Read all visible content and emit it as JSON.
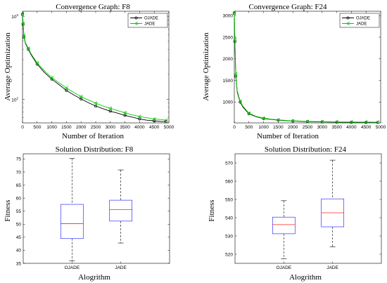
{
  "chart_data": [
    {
      "type": "line",
      "title": "Convergence Graph: F8",
      "xlabel": "Number of Iteration",
      "ylabel": "Average Optimization",
      "yscale": "log",
      "xlim": [
        0,
        5000
      ],
      "ylim": [
        52,
        1150
      ],
      "xticks": [
        "0",
        "500",
        "1000",
        "1500",
        "2000",
        "2500",
        "3000",
        "3500",
        "4000",
        "4500",
        "5000"
      ],
      "yticks": [
        {
          "value": 100,
          "label": "10",
          "sup": "2"
        },
        {
          "value": 1000,
          "label": "10",
          "sup": "3"
        }
      ],
      "legend_position": "top-right",
      "x": [
        0,
        20,
        50,
        100,
        200,
        300,
        500,
        750,
        1000,
        1250,
        1500,
        1750,
        2000,
        2250,
        2500,
        2750,
        3000,
        3250,
        3500,
        3750,
        4000,
        4250,
        4500,
        4750,
        4900
      ],
      "series": [
        {
          "name": "OJADE",
          "color": "#000000",
          "marker": "circle",
          "values": [
            1050,
            800,
            560,
            470,
            400,
            340,
            265,
            210,
            175,
            150,
            128,
            113,
            101,
            91,
            83,
            77,
            72,
            68,
            64,
            61,
            58,
            56,
            55,
            54,
            54
          ]
        },
        {
          "name": "JADE",
          "color": "#00cc00",
          "marker": "triangle-left",
          "values": [
            1080,
            820,
            580,
            480,
            410,
            350,
            275,
            220,
            182,
            158,
            137,
            121,
            108,
            98,
            90,
            83,
            78,
            73,
            69,
            65,
            62,
            60,
            58,
            57,
            56
          ]
        }
      ]
    },
    {
      "type": "line",
      "title": "Convergence Graph: F24",
      "xlabel": "Number of Iteration",
      "ylabel": "Average Optimization",
      "xlim": [
        0,
        5000
      ],
      "ylim": [
        520,
        3100
      ],
      "xticks": [
        "0",
        "500",
        "1000",
        "1500",
        "2000",
        "2500",
        "3000",
        "3500",
        "4000",
        "4500",
        "5000"
      ],
      "yticks": [
        "1000",
        "1500",
        "2000",
        "2500",
        "3000"
      ],
      "legend_position": "top-right",
      "x": [
        0,
        20,
        50,
        100,
        200,
        300,
        500,
        750,
        1000,
        1250,
        1500,
        1750,
        2000,
        2250,
        2500,
        2750,
        3000,
        3250,
        3500,
        3750,
        4000,
        4250,
        4500,
        4750,
        4900
      ],
      "series": [
        {
          "name": "OJADE",
          "color": "#000000",
          "marker": "circle",
          "values": [
            3050,
            2400,
            1600,
            1230,
            1000,
            880,
            730,
            660,
            620,
            600,
            585,
            572,
            563,
            556,
            550,
            546,
            543,
            540,
            538,
            536,
            535,
            534,
            533,
            532,
            532
          ]
        },
        {
          "name": "JADE",
          "color": "#00cc00",
          "marker": "triangle-left",
          "values": [
            3080,
            2450,
            1650,
            1260,
            1020,
            900,
            745,
            670,
            630,
            607,
            590,
            578,
            568,
            561,
            555,
            551,
            548,
            546,
            544,
            542,
            541,
            540,
            539,
            538,
            538
          ]
        }
      ]
    },
    {
      "type": "box",
      "title": "Solution Distribution: F8",
      "xlabel": "Alogrithm",
      "ylabel": "Fitness",
      "ylim": [
        35,
        77
      ],
      "yticks": [
        "35",
        "40",
        "45",
        "50",
        "55",
        "60",
        "65",
        "70",
        "75"
      ],
      "categories": [
        "OJADE",
        "JADE"
      ],
      "boxes": [
        {
          "name": "OJADE",
          "whisker_low": 36,
          "q1": 44.5,
          "median": 50.2,
          "q3": 57.6,
          "whisker_high": 75.2
        },
        {
          "name": "JADE",
          "whisker_low": 42.8,
          "q1": 51.2,
          "median": 55.6,
          "q3": 59.2,
          "whisker_high": 70.8
        }
      ]
    },
    {
      "type": "box",
      "title": "Solution Distribution: F24",
      "xlabel": "Alogrithm",
      "ylabel": "Fitness",
      "ylim": [
        515,
        575
      ],
      "yticks": [
        "520",
        "530",
        "540",
        "550",
        "560",
        "570"
      ],
      "categories": [
        "OJADE",
        "JADE"
      ],
      "boxes": [
        {
          "name": "OJADE",
          "whisker_low": 517.5,
          "q1": 531.2,
          "median": 536.2,
          "q3": 540.3,
          "whisker_high": 549.3
        },
        {
          "name": "JADE",
          "whisker_low": 524,
          "q1": 535,
          "median": 542.7,
          "q3": 550.3,
          "whisker_high": 571.5
        }
      ]
    }
  ]
}
